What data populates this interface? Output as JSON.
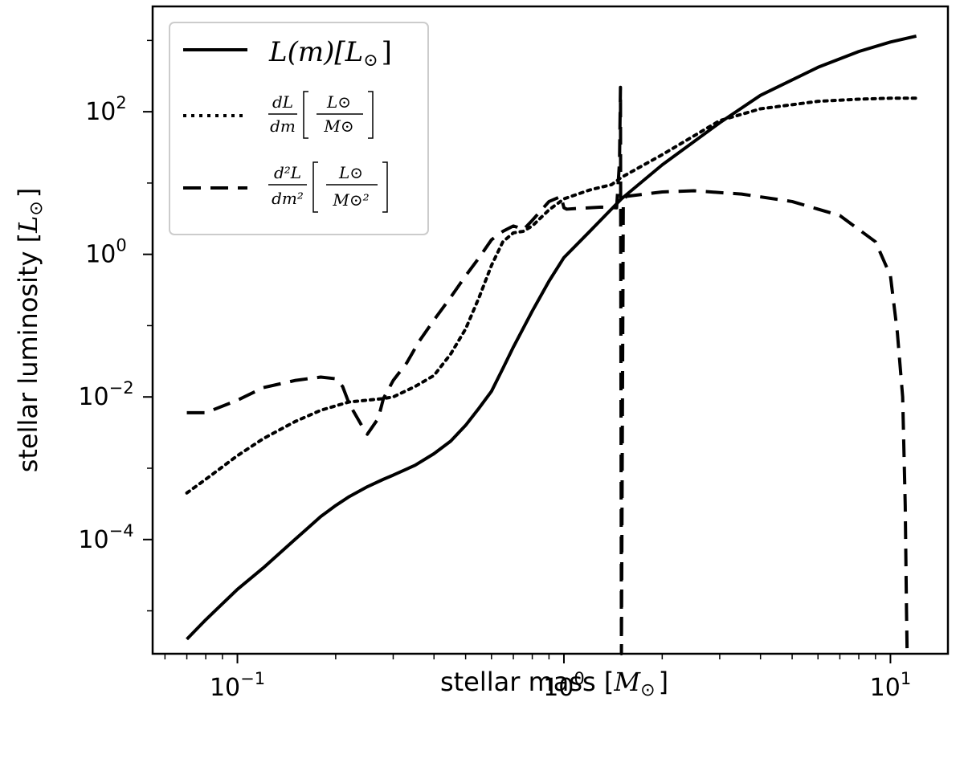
{
  "chart_data": {
    "type": "line",
    "x_scale": "log",
    "y_scale": "log",
    "xlim": [
      0.055,
      15
    ],
    "ylim": [
      2.5e-06,
      3000
    ],
    "xlabel": "stellar mass [",
    "xlabel_unit": "M",
    "xlabel_sub": "⊙",
    "xlabel_end": "]",
    "ylabel": "stellar luminosity [",
    "ylabel_unit": "L",
    "ylabel_sub": "⊙",
    "ylabel_end": "]",
    "x_ticks": [
      {
        "value": 0.1,
        "base": "10",
        "exp": "−1"
      },
      {
        "value": 1,
        "base": "10",
        "exp": "0"
      },
      {
        "value": 10,
        "base": "10",
        "exp": "1"
      }
    ],
    "y_ticks": [
      {
        "value": 100,
        "base": "10",
        "exp": "2"
      },
      {
        "value": 1,
        "base": "10",
        "exp": "0"
      },
      {
        "value": 0.01,
        "base": "10",
        "exp": "−2"
      },
      {
        "value": 0.0001,
        "base": "10",
        "exp": "−4"
      }
    ],
    "grid": false,
    "legend_position": "top-left",
    "series": [
      {
        "name": "L(m)[L⊙]",
        "style": "solid",
        "color": "#000000",
        "x": [
          0.07,
          0.08,
          0.1,
          0.12,
          0.15,
          0.18,
          0.2,
          0.22,
          0.25,
          0.28,
          0.3,
          0.35,
          0.4,
          0.45,
          0.5,
          0.55,
          0.6,
          0.65,
          0.7,
          0.8,
          0.9,
          1.0,
          1.2,
          1.5,
          2.0,
          3.0,
          4.0,
          6.0,
          8.0,
          10.0,
          12.0
        ],
        "y": [
          4e-06,
          7.5e-06,
          2e-05,
          4e-05,
          0.0001,
          0.00021,
          0.0003,
          0.0004,
          0.00055,
          0.0007,
          0.0008,
          0.0011,
          0.0016,
          0.0024,
          0.004,
          0.007,
          0.012,
          0.025,
          0.05,
          0.16,
          0.42,
          0.9,
          2.1,
          6,
          18,
          70,
          170,
          420,
          700,
          950,
          1150
        ]
      },
      {
        "name": "dL/dm [L⊙/M⊙]",
        "style": "dotted",
        "color": "#000000",
        "x": [
          0.07,
          0.08,
          0.1,
          0.12,
          0.15,
          0.18,
          0.2,
          0.22,
          0.25,
          0.28,
          0.3,
          0.35,
          0.4,
          0.45,
          0.5,
          0.55,
          0.6,
          0.65,
          0.7,
          0.75,
          0.8,
          0.9,
          1.0,
          1.2,
          1.4,
          1.5,
          2.0,
          3.0,
          4.0,
          6.0,
          8.0,
          10.0,
          12.0
        ],
        "y": [
          0.00045,
          0.0007,
          0.0015,
          0.0026,
          0.0045,
          0.0065,
          0.0075,
          0.0085,
          0.009,
          0.0095,
          0.01,
          0.014,
          0.02,
          0.04,
          0.09,
          0.25,
          0.7,
          1.5,
          2.0,
          2.1,
          2.5,
          4.2,
          6,
          8,
          9.5,
          12,
          25,
          75,
          110,
          140,
          150,
          155,
          155
        ]
      },
      {
        "name": "d²L/dm² [L⊙/M⊙²]",
        "style": "dashed",
        "color": "#000000",
        "x": [
          0.07,
          0.08,
          0.1,
          0.12,
          0.15,
          0.18,
          0.2,
          0.21,
          0.22,
          0.24,
          0.25,
          0.27,
          0.28,
          0.3,
          0.33,
          0.36,
          0.4,
          0.45,
          0.5,
          0.55,
          0.6,
          0.65,
          0.7,
          0.72,
          0.75,
          0.8,
          0.9,
          0.98,
          1.0,
          1.02,
          1.1,
          1.3,
          1.45,
          1.48,
          1.49,
          1.5,
          1.52,
          1.55,
          2.0,
          2.5,
          3.5,
          5.0,
          7.0,
          9.0,
          10.0,
          10.5,
          10.9,
          11.1,
          11.2,
          11.25
        ],
        "y": [
          0.006,
          0.006,
          0.009,
          0.0135,
          0.017,
          0.019,
          0.018,
          0.014,
          0.008,
          0.004,
          0.003,
          0.005,
          0.0095,
          0.017,
          0.03,
          0.06,
          0.12,
          0.25,
          0.5,
          0.9,
          1.6,
          2.1,
          2.5,
          2.4,
          2.2,
          3.0,
          5.5,
          6.5,
          4.5,
          4.3,
          4.4,
          4.6,
          4.5,
          20,
          220,
          2.5e-06,
          5.5,
          6.5,
          7.5,
          7.8,
          7.0,
          5.5,
          3.5,
          1.5,
          0.5,
          0.08,
          0.01,
          0.0003,
          1e-05,
          2.5e-06
        ]
      }
    ],
    "legend": [
      {
        "style": "solid",
        "label_main": "L(m)[L",
        "label_sub": "⊙",
        "label_end": "]"
      },
      {
        "style": "dotted",
        "num": "dL",
        "den": "dm",
        "unit_top": "L⊙",
        "unit_bottom": "M⊙"
      },
      {
        "style": "dashed",
        "num": "d²L",
        "den": "dm²",
        "unit_top": "L⊙",
        "unit_bottom": "M⊙²"
      }
    ]
  }
}
